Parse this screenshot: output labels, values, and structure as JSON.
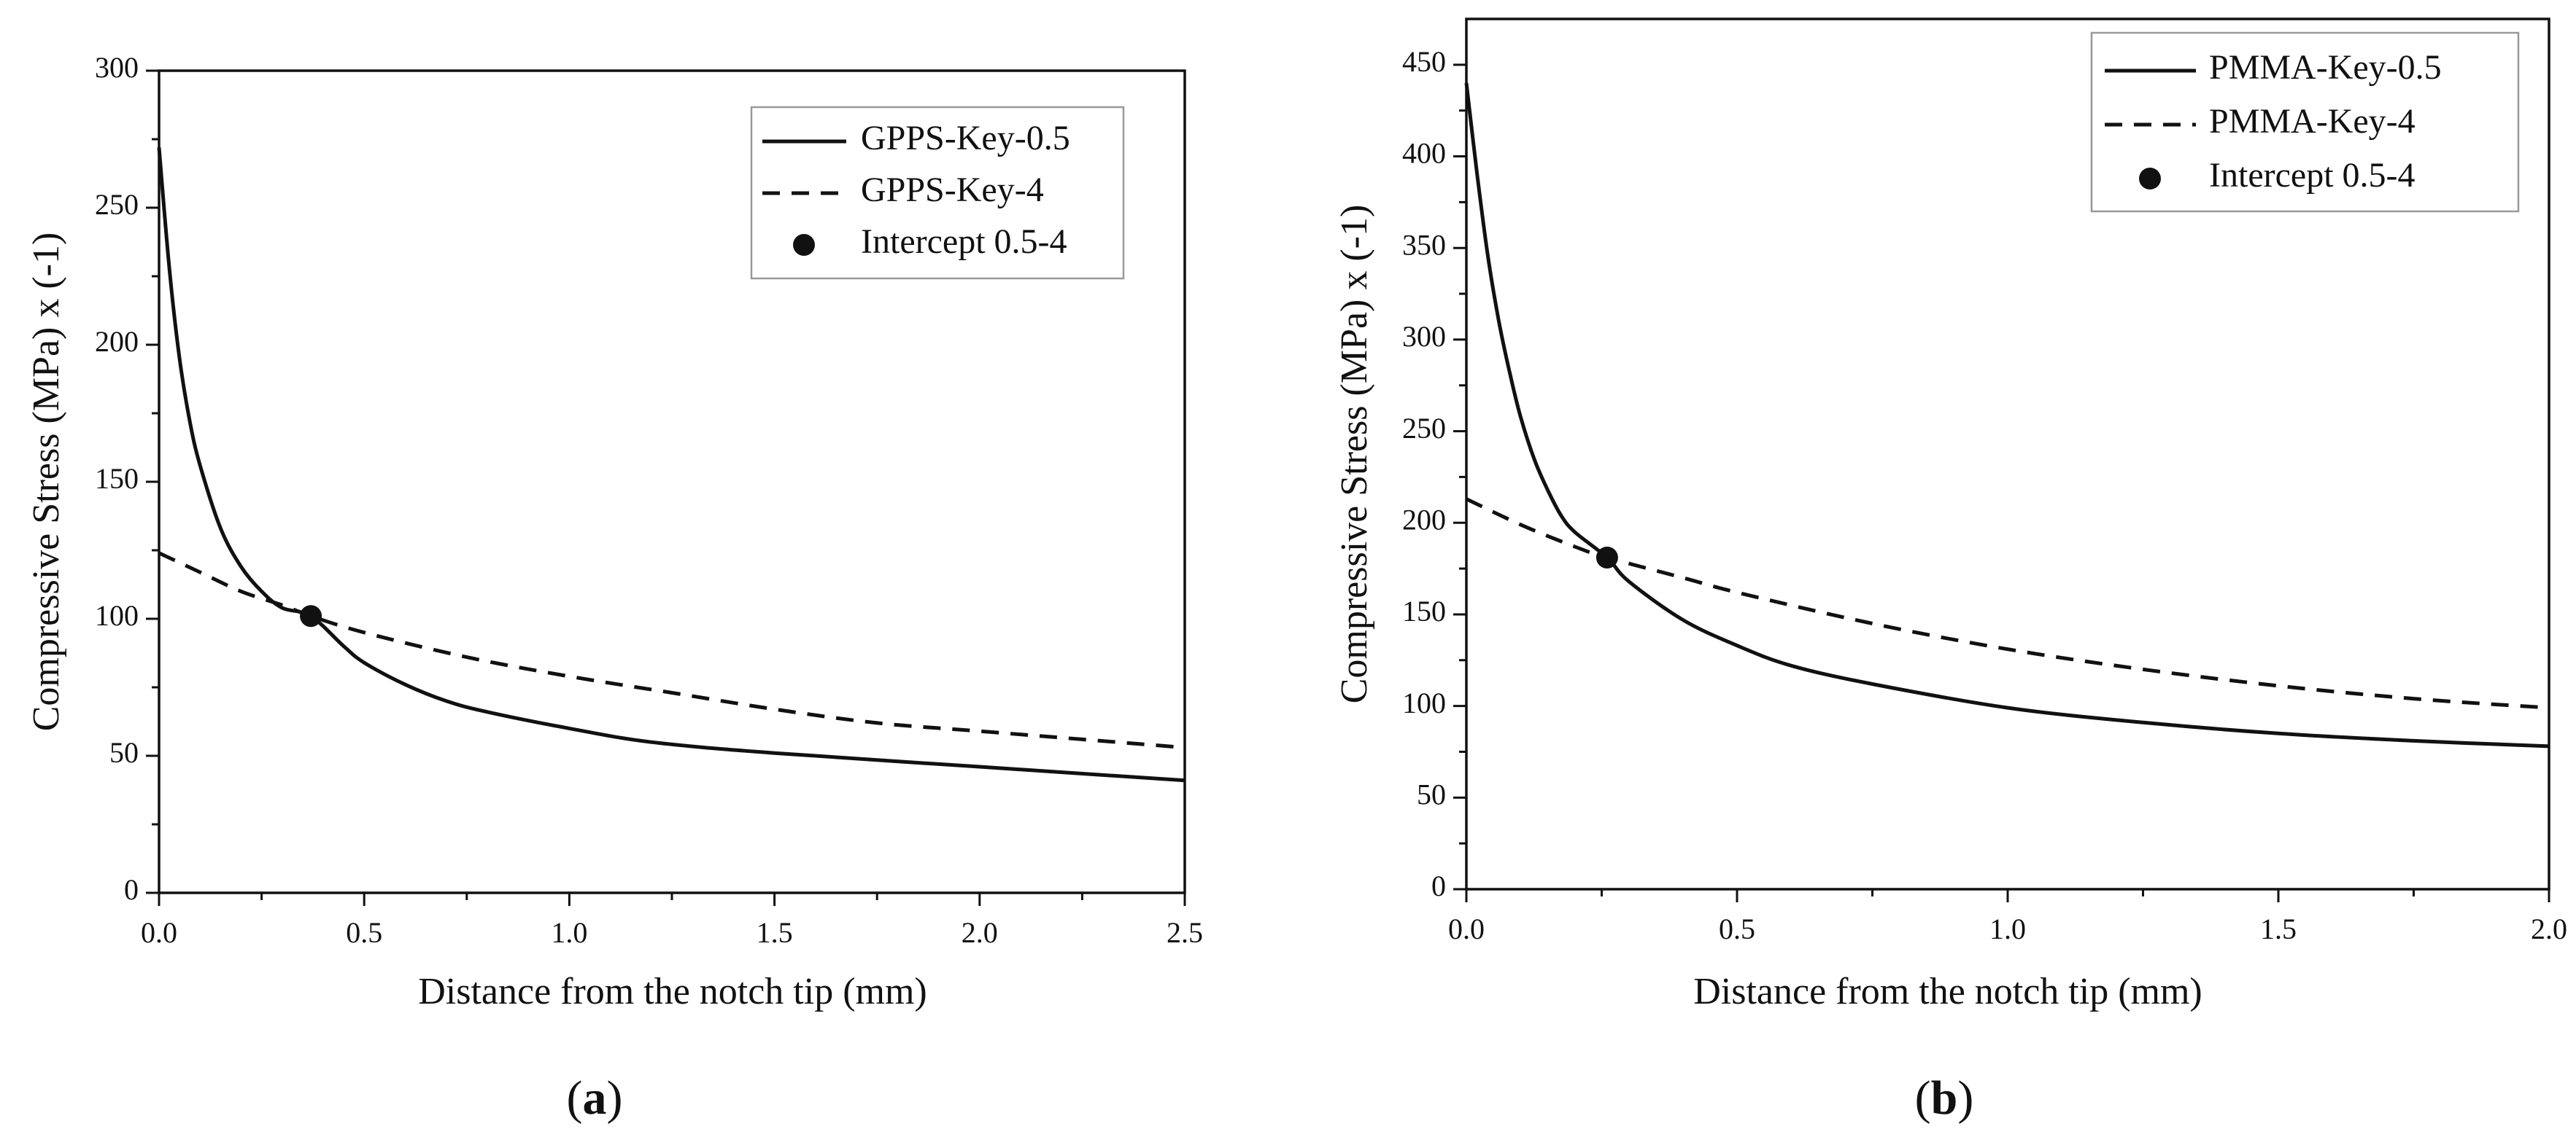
{
  "colors": {
    "line": "#111111",
    "background": "#ffffff",
    "legend_border": "#999999"
  },
  "chart_data": [
    {
      "type": "line",
      "panel_label": "a",
      "xlabel": "Distance from the notch tip (mm)",
      "ylabel": "Compressive Stress (MPa) x (-1)",
      "xlim": [
        0,
        2.5
      ],
      "ylim": [
        0,
        300
      ],
      "xticks": [
        0.0,
        0.5,
        1.0,
        1.5,
        2.0,
        2.5
      ],
      "xtick_labels": [
        "0.0",
        "0.5",
        "1.0",
        "1.5",
        "2.0",
        "2.5"
      ],
      "yticks": [
        0,
        50,
        100,
        150,
        200,
        250,
        300
      ],
      "ytick_labels": [
        "0",
        "50",
        "100",
        "150",
        "200",
        "250",
        "300"
      ],
      "legend_position": "top-right",
      "series": [
        {
          "name": "GPPS-Key-0.5",
          "style": "solid",
          "x": [
            0,
            0.025,
            0.05,
            0.075,
            0.1,
            0.15,
            0.2,
            0.25,
            0.3,
            0.37,
            0.45,
            0.5,
            0.6,
            0.7,
            0.8,
            1.0,
            1.2,
            1.5,
            2.0,
            2.5
          ],
          "y": [
            272,
            228,
            195,
            172,
            156,
            133,
            119,
            110,
            104,
            101,
            90,
            84,
            76,
            70,
            66,
            60,
            55,
            51,
            46,
            41
          ]
        },
        {
          "name": "GPPS-Key-4",
          "style": "dashed",
          "x": [
            0,
            0.1,
            0.2,
            0.3,
            0.37,
            0.5,
            0.75,
            1.0,
            1.25,
            1.5,
            1.75,
            2.0,
            2.25,
            2.5
          ],
          "y": [
            124,
            117,
            110,
            105,
            101,
            95,
            86,
            79,
            73,
            67,
            62,
            59,
            56,
            53
          ]
        }
      ],
      "points": [
        {
          "name": "Intercept 0.5-4",
          "x": 0.37,
          "y": 101
        }
      ]
    },
    {
      "type": "line",
      "panel_label": "b",
      "xlabel": "Distance from the notch tip (mm)",
      "ylabel": "Compressive Stress (MPa) x (-1)",
      "xlim": [
        0,
        2.0
      ],
      "ylim": [
        0,
        475
      ],
      "xticks": [
        0.0,
        0.5,
        1.0,
        1.5,
        2.0
      ],
      "xtick_labels": [
        "0.0",
        "0.5",
        "1.0",
        "1.5",
        "2.0"
      ],
      "yticks": [
        0,
        50,
        100,
        150,
        200,
        250,
        300,
        350,
        400,
        450
      ],
      "ytick_labels": [
        "0",
        "50",
        "100",
        "150",
        "200",
        "250",
        "300",
        "350",
        "400",
        "450"
      ],
      "legend_position": "top-right",
      "series": [
        {
          "name": "PMMA-Key-0.5",
          "style": "solid",
          "x": [
            0,
            0.02,
            0.04,
            0.06,
            0.08,
            0.1,
            0.125,
            0.15,
            0.175,
            0.2,
            0.26,
            0.3,
            0.4,
            0.5,
            0.6,
            0.75,
            1.0,
            1.25,
            1.5,
            1.75,
            2.0
          ],
          "y": [
            440,
            390,
            345,
            310,
            282,
            258,
            235,
            218,
            204,
            195,
            181,
            168,
            147,
            133,
            122,
            112,
            99,
            91,
            85,
            81,
            78
          ]
        },
        {
          "name": "PMMA-Key-4",
          "style": "dashed",
          "x": [
            0,
            0.1,
            0.2,
            0.26,
            0.4,
            0.5,
            0.75,
            1.0,
            1.25,
            1.5,
            1.75,
            2.0
          ],
          "y": [
            213,
            199,
            187,
            181,
            170,
            162,
            145,
            131,
            120,
            111,
            104,
            99
          ]
        }
      ],
      "points": [
        {
          "name": "Intercept 0.5-4",
          "x": 0.26,
          "y": 181
        }
      ]
    }
  ]
}
